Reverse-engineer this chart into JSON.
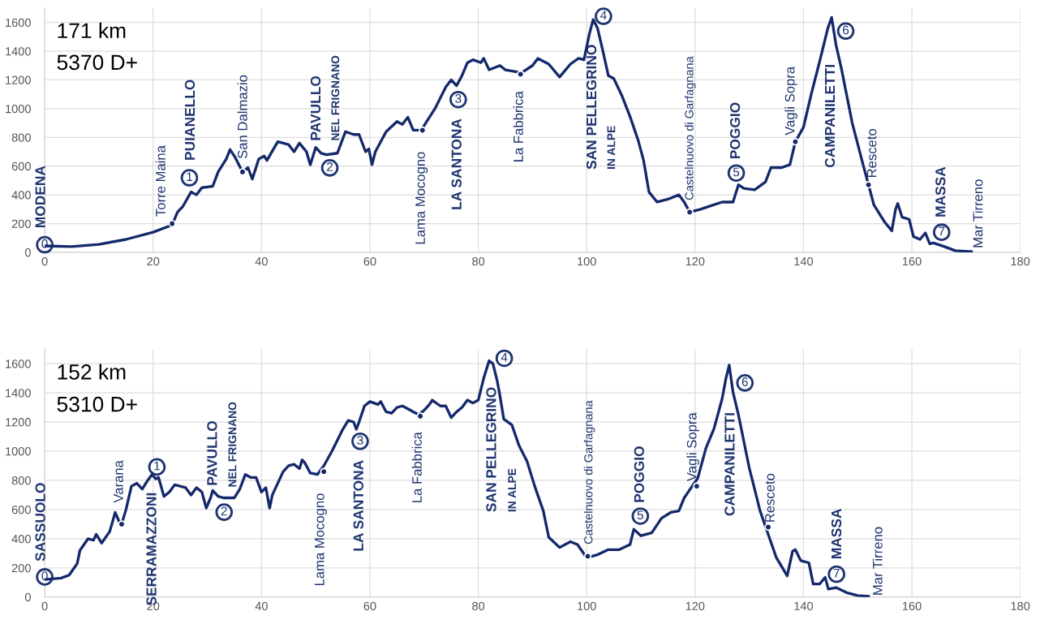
{
  "chart_data": [
    {
      "type": "line",
      "xlim": [
        0,
        180
      ],
      "xticks": [
        0,
        20,
        40,
        60,
        80,
        100,
        120,
        140,
        160,
        180
      ],
      "ylim": [
        0,
        1700
      ],
      "yticks": [
        0,
        200,
        400,
        600,
        800,
        1000,
        1200,
        1400,
        1600
      ],
      "grid": true,
      "line_style": "solid",
      "marker": "none",
      "series": [
        {
          "color": "#14296b",
          "x": [
            0,
            5,
            10,
            15,
            20,
            23.5,
            24.5,
            25.5,
            27,
            28,
            29,
            31,
            32,
            33.5,
            34.2,
            35,
            36.5,
            37.5,
            38.3,
            39.5,
            40.5,
            41,
            43,
            45,
            46,
            47,
            48.3,
            49,
            50,
            51,
            52,
            54,
            55.5,
            57,
            58,
            59.2,
            59.8,
            60.4,
            61,
            63,
            65,
            66,
            67,
            68,
            69.5,
            70.3,
            72,
            74,
            75,
            76,
            77,
            78,
            79,
            80.5,
            81,
            82,
            84,
            85,
            88,
            90,
            91,
            93,
            95,
            97,
            98.5,
            99.5,
            100.5,
            101.2,
            102,
            103,
            104,
            105,
            106.5,
            108,
            109.5,
            110.5,
            111.5,
            113,
            115,
            117,
            118,
            119,
            121,
            123,
            125,
            127,
            128,
            129,
            131,
            133,
            134,
            136,
            137.5,
            138.5,
            140,
            141.5,
            143,
            144.5,
            145.2,
            146,
            147,
            149,
            151,
            152,
            153,
            155,
            156.3,
            157,
            157.4,
            158.2,
            159.5,
            160.3,
            161.5,
            162.5,
            163.3,
            164,
            166,
            168,
            171
          ],
          "values": [
            45,
            40,
            55,
            90,
            140,
            190,
            280,
            320,
            420,
            400,
            450,
            460,
            560,
            650,
            715,
            670,
            560,
            590,
            510,
            650,
            670,
            640,
            770,
            750,
            700,
            760,
            700,
            610,
            730,
            690,
            680,
            690,
            840,
            820,
            820,
            700,
            720,
            610,
            700,
            840,
            910,
            890,
            940,
            850,
            850,
            900,
            1000,
            1150,
            1200,
            1160,
            1230,
            1320,
            1340,
            1320,
            1350,
            1270,
            1300,
            1270,
            1250,
            1300,
            1350,
            1310,
            1220,
            1310,
            1350,
            1340,
            1520,
            1620,
            1560,
            1400,
            1230,
            1210,
            1090,
            945,
            780,
            640,
            420,
            350,
            370,
            400,
            350,
            280,
            300,
            325,
            350,
            350,
            470,
            445,
            435,
            490,
            590,
            590,
            610,
            770,
            870,
            1110,
            1330,
            1560,
            1635,
            1445,
            1280,
            900,
            610,
            470,
            330,
            210,
            150,
            300,
            340,
            245,
            230,
            110,
            90,
            135,
            60,
            65,
            40,
            12,
            5
          ]
        },
        {
          "type": "scatter",
          "color": "#14296b",
          "x": [
            23.5,
            36.5,
            69.7,
            87.8,
            119,
            138.5,
            152
          ],
          "values": [
            200,
            560,
            850,
            1240,
            280,
            770,
            470
          ]
        }
      ],
      "annotations": [
        "171 km",
        "5370 D+",
        "MODENA",
        "Torre Maina",
        "PUIANELLO",
        "San Dalmazio",
        "PAVULLO",
        "NEL FRIGNANO",
        "Lama Mocogno",
        "LA SANTONA",
        "La Fabbrica",
        "SAN PELLEGRINO",
        "IN ALPE",
        "Castelnuovo di Garfagnana",
        "POGGIO",
        "Vagli Sopra",
        "CAMPANILETTI",
        "Resceto",
        "MASSA",
        "Mar Tirreno",
        {
          "text": "0",
          "x": 0,
          "y": 53
        },
        {
          "text": "1",
          "x": 26.7,
          "y": 519
        },
        {
          "text": "2",
          "x": 52.6,
          "y": 588
        },
        {
          "text": "3",
          "x": 76.3,
          "y": 1063
        },
        {
          "text": "4",
          "x": 103.1,
          "y": 1643
        },
        {
          "text": "5",
          "x": 127.6,
          "y": 552
        },
        {
          "text": "6",
          "x": 147.8,
          "y": 1540
        },
        {
          "text": "7",
          "x": 165.5,
          "y": 140
        }
      ]
    },
    {
      "type": "line",
      "xlim": [
        0,
        180
      ],
      "xticks": [
        0,
        20,
        40,
        60,
        80,
        100,
        120,
        140,
        160,
        180
      ],
      "ylim": [
        0,
        1700
      ],
      "yticks": [
        0,
        200,
        400,
        600,
        800,
        1000,
        1200,
        1400,
        1600
      ],
      "grid": true,
      "line_style": "solid",
      "marker": "none",
      "series": [
        {
          "color": "#14296b",
          "x": [
            0,
            3,
            4.5,
            6,
            6.5,
            8,
            9,
            9.5,
            10.5,
            12,
            13,
            13.7,
            14.2,
            15,
            16,
            17,
            18,
            19,
            19.8,
            20.5,
            21,
            22,
            23,
            24,
            26,
            27,
            28,
            29,
            29.8,
            30.6,
            31,
            32,
            33,
            35,
            36,
            37,
            38,
            39,
            40,
            40.8,
            41.5,
            42,
            44,
            45,
            46,
            47,
            47.5,
            48,
            49,
            50.3,
            51.5,
            53,
            55,
            56,
            57,
            57.5,
            58,
            59,
            60,
            61.5,
            62,
            63,
            64,
            65,
            66,
            67,
            68,
            69,
            70,
            71,
            71.5,
            73,
            74,
            75,
            76,
            77,
            78,
            79,
            80,
            81,
            82,
            82.7,
            83.5,
            84,
            84.7,
            86.2,
            87.5,
            89,
            90.5,
            92,
            93,
            95,
            97,
            98.3,
            100,
            102,
            104,
            106,
            108,
            108.7,
            110,
            112,
            113.8,
            115.5,
            117,
            118,
            119,
            120.5,
            122,
            123.5,
            125,
            125.7,
            126.3,
            127,
            128,
            130,
            132,
            133.5,
            135,
            137,
            138,
            138.5,
            139.5,
            141,
            141.8,
            143,
            144,
            144.6,
            146,
            148,
            150,
            152
          ],
          "values": [
            120,
            130,
            150,
            230,
            320,
            400,
            390,
            430,
            370,
            450,
            580,
            520,
            500,
            600,
            760,
            780,
            740,
            800,
            840,
            810,
            820,
            690,
            720,
            770,
            750,
            700,
            750,
            720,
            610,
            680,
            730,
            690,
            680,
            680,
            740,
            840,
            820,
            820,
            720,
            750,
            610,
            700,
            860,
            900,
            910,
            880,
            940,
            920,
            850,
            840,
            900,
            1000,
            1150,
            1210,
            1200,
            1150,
            1200,
            1310,
            1340,
            1320,
            1340,
            1270,
            1260,
            1300,
            1310,
            1290,
            1270,
            1250,
            1280,
            1320,
            1350,
            1310,
            1310,
            1230,
            1270,
            1300,
            1350,
            1330,
            1350,
            1500,
            1620,
            1600,
            1480,
            1380,
            1220,
            1180,
            1040,
            930,
            750,
            590,
            410,
            340,
            380,
            360,
            270,
            290,
            325,
            325,
            360,
            465,
            420,
            440,
            540,
            580,
            590,
            680,
            735,
            815,
            1020,
            1155,
            1360,
            1500,
            1590,
            1405,
            1250,
            885,
            590,
            430,
            270,
            145,
            315,
            325,
            250,
            235,
            90,
            90,
            135,
            55,
            65,
            30,
            10,
            5
          ]
        },
        {
          "type": "scatter",
          "color": "#14296b",
          "x": [
            14.2,
            51.5,
            69.3,
            100.2,
            120.3,
            133.5
          ],
          "values": [
            500,
            860,
            1240,
            280,
            760,
            480
          ]
        }
      ],
      "annotations": [
        "152 km",
        "5310 D+",
        "SASSUOLO",
        "Varana",
        "SERRAMAZZONI",
        "PAVULLO",
        "NEL FRIGNANO",
        "Lama Mocogno",
        "LA SANTONA",
        "La Fabbrica",
        "SAN PELLEGRINO",
        "IN ALPE",
        "Castelnuovo di Garfagnana",
        "POGGIO",
        "Vagli Sopra",
        "CAMPANILETTI",
        "Resceto",
        "MASSA",
        "Mar Tirreno",
        {
          "text": "0",
          "x": 0,
          "y": 138
        },
        {
          "text": "1",
          "x": 20.7,
          "y": 892
        },
        {
          "text": "2",
          "x": 33.1,
          "y": 582
        },
        {
          "text": "3",
          "x": 58.2,
          "y": 1068
        },
        {
          "text": "4",
          "x": 84.8,
          "y": 1637
        },
        {
          "text": "5",
          "x": 109.9,
          "y": 555
        },
        {
          "text": "6",
          "x": 129.2,
          "y": 1468
        },
        {
          "text": "7",
          "x": 146.1,
          "y": 157
        }
      ]
    }
  ]
}
